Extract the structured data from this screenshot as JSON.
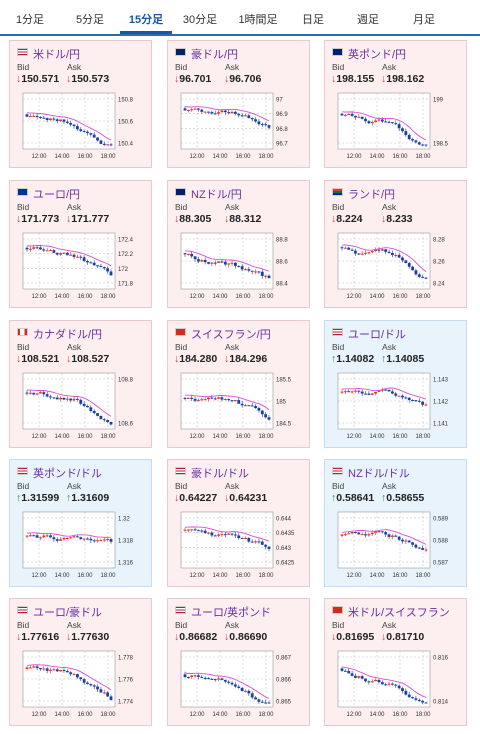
{
  "tabs": [
    {
      "label": "1分足"
    },
    {
      "label": "5分足"
    },
    {
      "label": "15分足"
    },
    {
      "label": "30分足"
    },
    {
      "label": "1時間足"
    },
    {
      "label": "日足"
    },
    {
      "label": "週足"
    },
    {
      "label": "月足"
    }
  ],
  "bid_label": "Bid",
  "ask_label": "Ask",
  "time_labels": [
    "12:00",
    "14:00",
    "16:00",
    "18:00"
  ],
  "colors": {
    "candle_up": "#e0322b",
    "candle_down": "#1b3fa0",
    "ma": "#d64fd6",
    "down_arrow": "#d23b3b",
    "up_arrow": "#2f8f3a"
  },
  "cards": [
    {
      "name": "米ドル/円",
      "bid": "150.571",
      "ask": "150.573",
      "dir": "down",
      "ticks": [
        "150.8",
        "150.6",
        "150.4"
      ],
      "flag": "us",
      "theme": "red"
    },
    {
      "name": "豪ドル/円",
      "bid": "96.701",
      "ask": "96.706",
      "dir": "down",
      "ticks": [
        "97",
        "96.9",
        "96.8",
        "96.7"
      ],
      "flag": "au",
      "theme": "red"
    },
    {
      "name": "英ポンド/円",
      "bid": "198.155",
      "ask": "198.162",
      "dir": "down",
      "ticks": [
        "199",
        "198.5"
      ],
      "flag": "gb",
      "theme": "red"
    },
    {
      "name": "ユーロ/円",
      "bid": "171.773",
      "ask": "171.777",
      "dir": "down",
      "ticks": [
        "172.4",
        "172.2",
        "172",
        "171.8"
      ],
      "flag": "eu",
      "theme": "red"
    },
    {
      "name": "NZドル/円",
      "bid": "88.305",
      "ask": "88.312",
      "dir": "down",
      "ticks": [
        "88.8",
        "88.6",
        "88.4"
      ],
      "flag": "nz",
      "theme": "red"
    },
    {
      "name": "ランド/円",
      "bid": "8.224",
      "ask": "8.233",
      "dir": "down",
      "ticks": [
        "8.28",
        "8.26",
        "8.24"
      ],
      "flag": "za",
      "theme": "red"
    },
    {
      "name": "カナダドル/円",
      "bid": "108.521",
      "ask": "108.527",
      "dir": "down",
      "ticks": [
        "108.8",
        "108.6"
      ],
      "flag": "ca",
      "theme": "red"
    },
    {
      "name": "スイスフラン/円",
      "bid": "184.280",
      "ask": "184.296",
      "dir": "down",
      "ticks": [
        "185.5",
        "185",
        "184.5"
      ],
      "flag": "ch",
      "theme": "red"
    },
    {
      "name": "ユーロ/ドル",
      "bid": "1.14082",
      "ask": "1.14085",
      "dir": "up",
      "ticks": [
        "1.143",
        "1.142",
        "1.141"
      ],
      "flag": "us",
      "theme": "blue"
    },
    {
      "name": "英ポンド/ドル",
      "bid": "1.31599",
      "ask": "1.31609",
      "dir": "up",
      "ticks": [
        "1.32",
        "1.318",
        "1.316"
      ],
      "flag": "us",
      "theme": "blue"
    },
    {
      "name": "豪ドル/ドル",
      "bid": "0.64227",
      "ask": "0.64231",
      "dir": "down",
      "ticks": [
        "0.644",
        "0.6435",
        "0.643",
        "0.6425"
      ],
      "flag": "us",
      "theme": "red"
    },
    {
      "name": "NZドル/ドル",
      "bid": "0.58641",
      "ask": "0.58655",
      "dir": "up",
      "ticks": [
        "0.589",
        "0.588",
        "0.587"
      ],
      "flag": "us",
      "theme": "blue"
    },
    {
      "name": "ユーロ/豪ドル",
      "bid": "1.77616",
      "ask": "1.77630",
      "dir": "down",
      "ticks": [
        "1.778",
        "1.776",
        "1.774"
      ],
      "flag": "us",
      "theme": "red"
    },
    {
      "name": "ユーロ/英ポンド",
      "bid": "0.86682",
      "ask": "0.86690",
      "dir": "down",
      "ticks": [
        "0.867",
        "0.866",
        "0.865"
      ],
      "flag": "us",
      "theme": "red"
    },
    {
      "name": "米ドル/スイスフラン",
      "bid": "0.81695",
      "ask": "0.81710",
      "dir": "down",
      "ticks": [
        "0.816",
        "0.814"
      ],
      "flag": "ch",
      "theme": "red"
    }
  ]
}
